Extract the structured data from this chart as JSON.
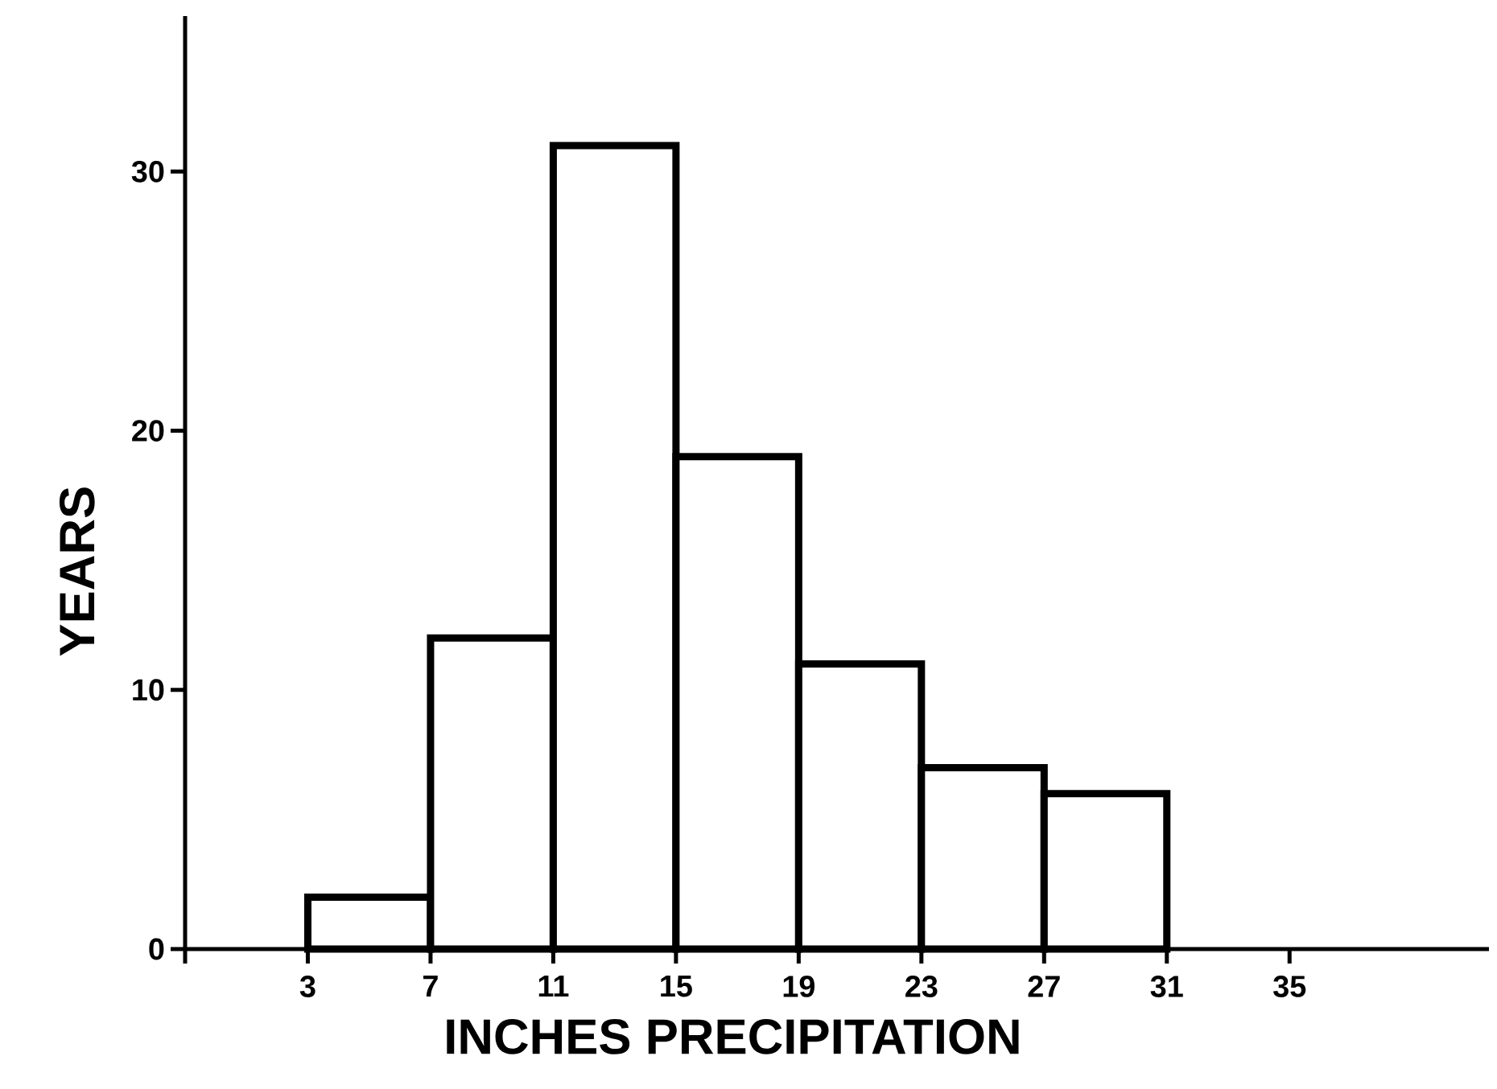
{
  "chart_data": {
    "type": "histogram",
    "xlabel": "INCHES PRECIPITATION",
    "ylabel": "YEARS",
    "bins": [
      3,
      7,
      11,
      15,
      19,
      23,
      27,
      31
    ],
    "values": [
      2,
      12,
      31,
      19,
      11,
      7,
      6
    ],
    "color": "#000000",
    "xlim": [
      -1,
      41.5
    ],
    "ylim": [
      0,
      36
    ],
    "xticks": [
      {
        "value": -1,
        "label": null
      },
      3,
      7,
      11,
      15,
      19,
      23,
      27,
      31,
      35
    ],
    "yticks": [
      0,
      10,
      20,
      30
    ]
  }
}
